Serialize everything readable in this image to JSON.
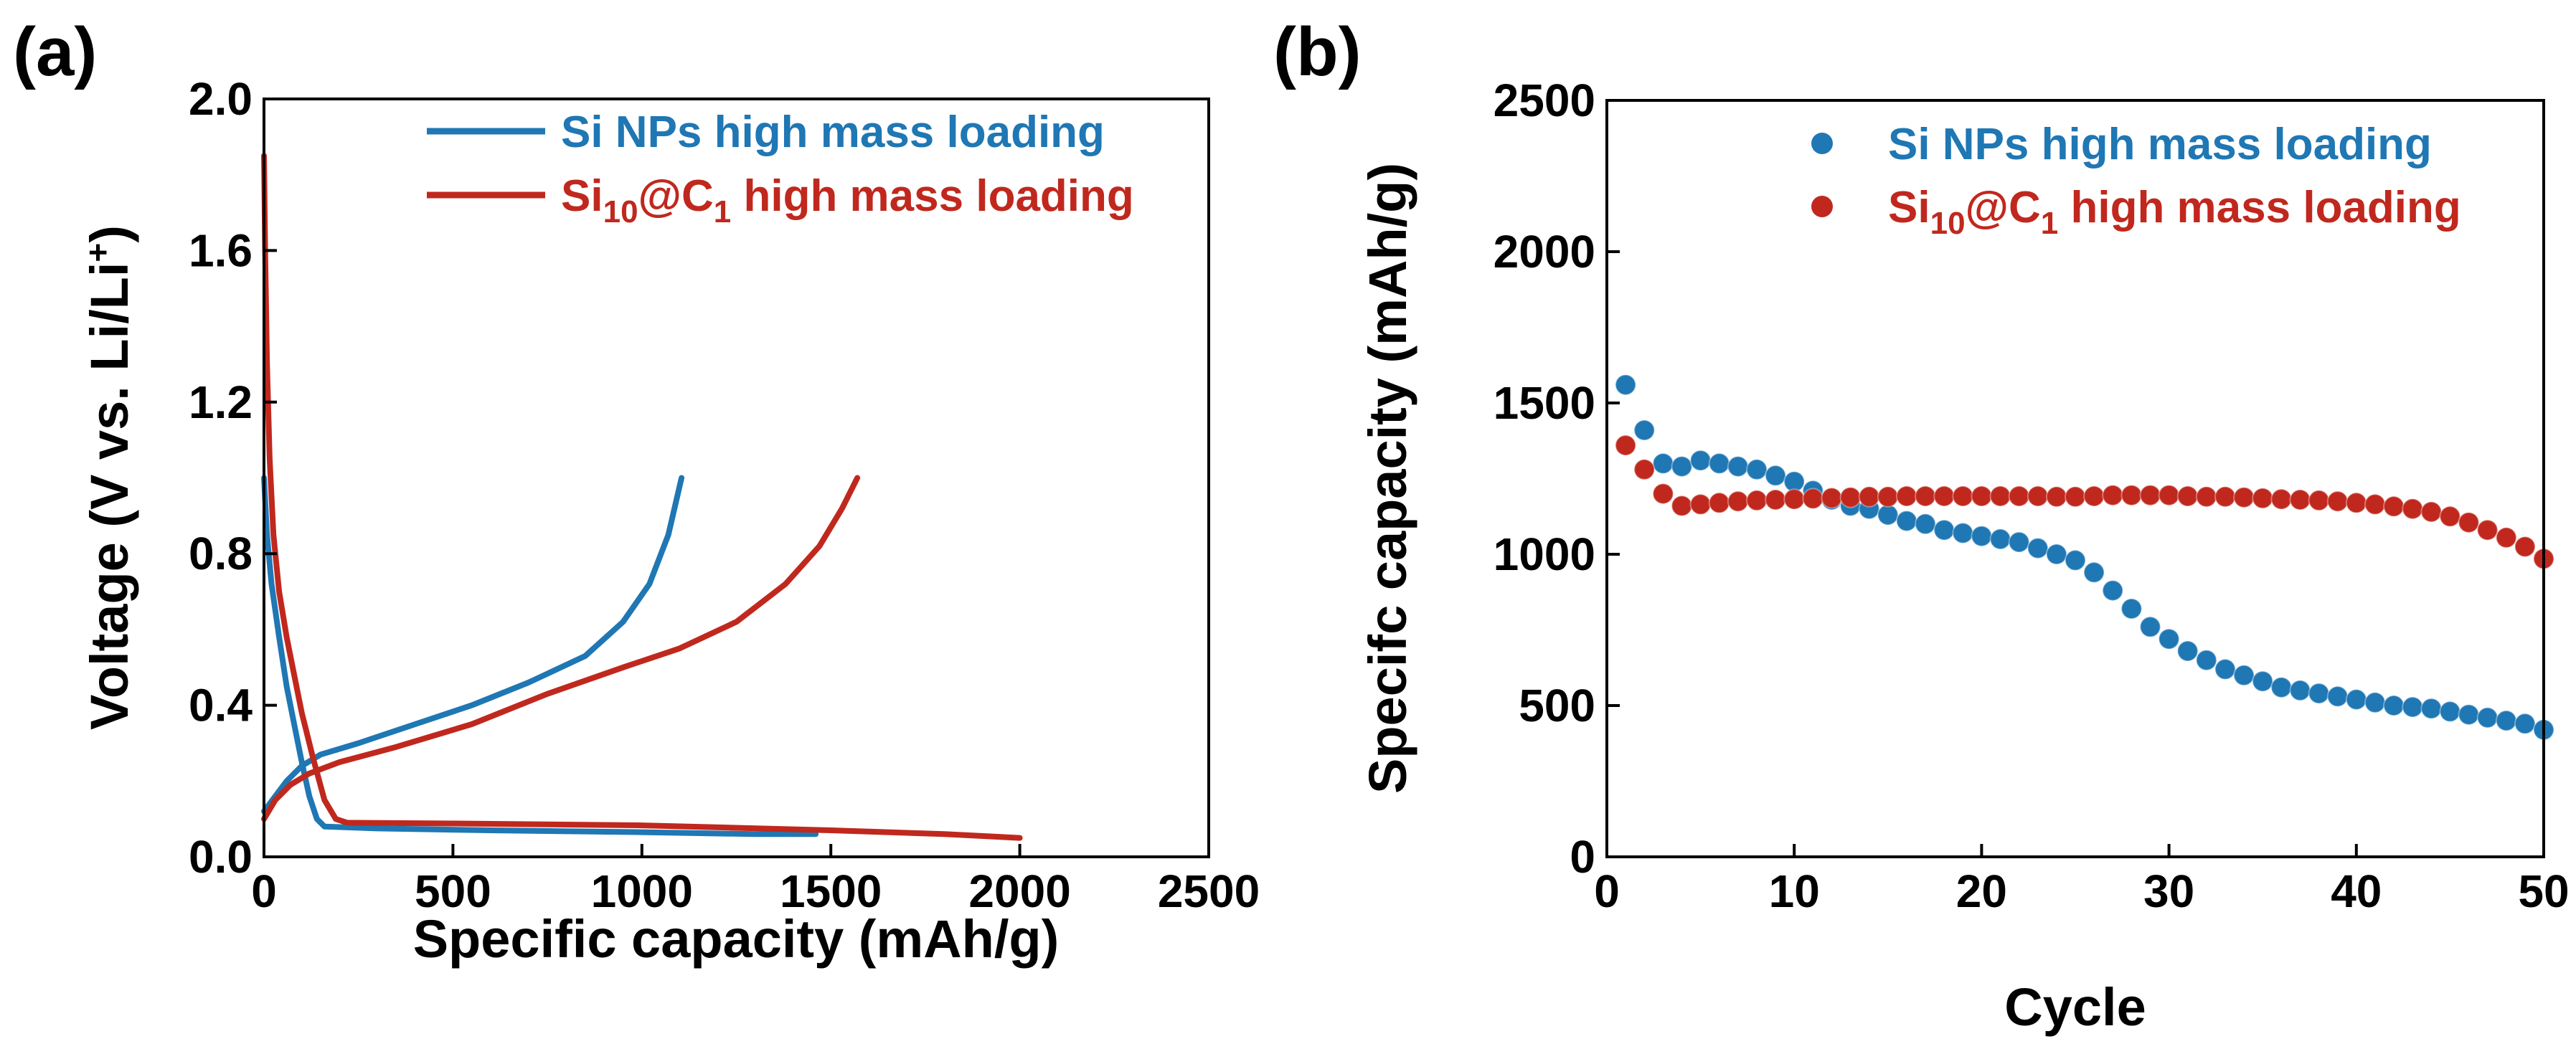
{
  "chart_data": [
    {
      "panel_label": "(a)",
      "type": "line",
      "xlabel": "Specific capacity (mAh/g)",
      "ylabel_main": "Voltage (V vs. Li/Li",
      "ylabel_sup": "+",
      "ylabel_close": ")",
      "xlim": [
        0,
        2500
      ],
      "ylim": [
        0,
        2.0
      ],
      "xticks": [
        "0",
        "500",
        "1000",
        "1500",
        "2000",
        "2500"
      ],
      "yticks": [
        "0.0",
        "0.4",
        "0.8",
        "1.2",
        "1.6",
        "2.0"
      ],
      "legend_position": "top-right",
      "series": [
        {
          "name": "Si NPs high mass loading",
          "name_base": "Si NPs high mass loading",
          "name_sub1": "",
          "name_mid": "",
          "name_sub2": "",
          "name_tail": "",
          "color": "#1f77b4",
          "discharge": [
            [
              0,
              1.0
            ],
            [
              8,
              0.85
            ],
            [
              20,
              0.72
            ],
            [
              40,
              0.58
            ],
            [
              60,
              0.45
            ],
            [
              80,
              0.35
            ],
            [
              100,
              0.25
            ],
            [
              120,
              0.16
            ],
            [
              140,
              0.1
            ],
            [
              160,
              0.08
            ],
            [
              300,
              0.075
            ],
            [
              600,
              0.07
            ],
            [
              1000,
              0.065
            ],
            [
              1300,
              0.06
            ],
            [
              1460,
              0.06
            ]
          ],
          "charge": [
            [
              0,
              0.12
            ],
            [
              30,
              0.16
            ],
            [
              60,
              0.2
            ],
            [
              100,
              0.24
            ],
            [
              150,
              0.27
            ],
            [
              250,
              0.3
            ],
            [
              400,
              0.35
            ],
            [
              550,
              0.4
            ],
            [
              700,
              0.46
            ],
            [
              850,
              0.53
            ],
            [
              950,
              0.62
            ],
            [
              1020,
              0.72
            ],
            [
              1070,
              0.85
            ],
            [
              1105,
              1.0
            ]
          ]
        },
        {
          "name": "Si10@C1 high mass loading",
          "name_base": "Si",
          "name_sub1": "10",
          "name_mid": "@C",
          "name_sub2": "1",
          "name_tail": " high mass loading",
          "color": "#c0281e",
          "discharge": [
            [
              0,
              1.85
            ],
            [
              3,
              1.6
            ],
            [
              8,
              1.3
            ],
            [
              15,
              1.05
            ],
            [
              25,
              0.85
            ],
            [
              40,
              0.7
            ],
            [
              60,
              0.58
            ],
            [
              80,
              0.48
            ],
            [
              100,
              0.38
            ],
            [
              130,
              0.26
            ],
            [
              160,
              0.15
            ],
            [
              190,
              0.1
            ],
            [
              220,
              0.09
            ],
            [
              500,
              0.088
            ],
            [
              1000,
              0.083
            ],
            [
              1500,
              0.07
            ],
            [
              1800,
              0.06
            ],
            [
              2000,
              0.05
            ]
          ],
          "charge": [
            [
              0,
              0.1
            ],
            [
              30,
              0.15
            ],
            [
              70,
              0.19
            ],
            [
              120,
              0.22
            ],
            [
              200,
              0.25
            ],
            [
              350,
              0.29
            ],
            [
              550,
              0.35
            ],
            [
              750,
              0.43
            ],
            [
              950,
              0.5
            ],
            [
              1100,
              0.55
            ],
            [
              1250,
              0.62
            ],
            [
              1380,
              0.72
            ],
            [
              1470,
              0.82
            ],
            [
              1530,
              0.92
            ],
            [
              1570,
              1.0
            ]
          ]
        }
      ]
    },
    {
      "panel_label": "(b)",
      "type": "scatter",
      "xlabel": "Cycle",
      "ylabel": "Specifc capacity (mAh/g)",
      "xlim": [
        0,
        50
      ],
      "ylim": [
        0,
        2500
      ],
      "xticks": [
        "0",
        "10",
        "20",
        "30",
        "40",
        "50"
      ],
      "yticks": [
        "0",
        "500",
        "1000",
        "1500",
        "2000",
        "2500"
      ],
      "legend_position": "top-right",
      "series": [
        {
          "name": "Si NPs high mass loading",
          "name_base": "Si NPs high mass loading",
          "name_sub1": "",
          "name_mid": "",
          "name_sub2": "",
          "name_tail": "",
          "color": "#1f77b4",
          "x": [
            1,
            2,
            3,
            4,
            5,
            6,
            7,
            8,
            9,
            10,
            11,
            12,
            13,
            14,
            15,
            16,
            17,
            18,
            19,
            20,
            21,
            22,
            23,
            24,
            25,
            26,
            27,
            28,
            29,
            30,
            31,
            32,
            33,
            34,
            35,
            36,
            37,
            38,
            39,
            40,
            41,
            42,
            43,
            44,
            45,
            46,
            47,
            48,
            49,
            50
          ],
          "y": [
            1560,
            1410,
            1300,
            1290,
            1310,
            1300,
            1290,
            1280,
            1260,
            1240,
            1210,
            1180,
            1160,
            1150,
            1130,
            1110,
            1100,
            1080,
            1070,
            1060,
            1050,
            1040,
            1020,
            1000,
            980,
            940,
            880,
            820,
            760,
            720,
            680,
            650,
            620,
            600,
            580,
            560,
            550,
            540,
            530,
            520,
            510,
            500,
            495,
            490,
            480,
            470,
            460,
            450,
            440,
            420
          ]
        },
        {
          "name": "Si10@C1 high mass loading",
          "name_base": "Si",
          "name_sub1": "10",
          "name_mid": "@C",
          "name_sub2": "1",
          "name_tail": " high mass loading",
          "color": "#c0281e",
          "x": [
            1,
            2,
            3,
            4,
            5,
            6,
            7,
            8,
            9,
            10,
            11,
            12,
            13,
            14,
            15,
            16,
            17,
            18,
            19,
            20,
            21,
            22,
            23,
            24,
            25,
            26,
            27,
            28,
            29,
            30,
            31,
            32,
            33,
            34,
            35,
            36,
            37,
            38,
            39,
            40,
            41,
            42,
            43,
            44,
            45,
            46,
            47,
            48,
            49,
            50
          ],
          "y": [
            1360,
            1280,
            1200,
            1160,
            1165,
            1170,
            1175,
            1178,
            1180,
            1182,
            1184,
            1186,
            1188,
            1190,
            1190,
            1192,
            1192,
            1192,
            1192,
            1192,
            1192,
            1192,
            1192,
            1190,
            1190,
            1192,
            1195,
            1195,
            1195,
            1195,
            1192,
            1190,
            1190,
            1188,
            1185,
            1182,
            1180,
            1178,
            1175,
            1170,
            1165,
            1158,
            1150,
            1140,
            1125,
            1105,
            1080,
            1055,
            1025,
            985
          ]
        }
      ]
    }
  ]
}
